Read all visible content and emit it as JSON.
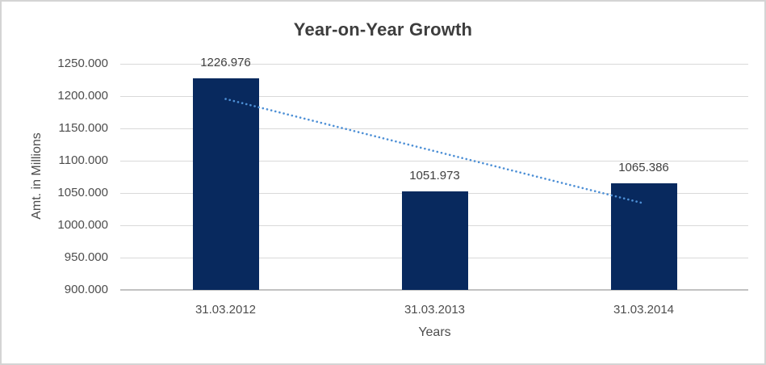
{
  "window": {
    "background": "#FFFFFF",
    "border_color": "#D4D4D4"
  },
  "chart_data": {
    "type": "bar",
    "title": "Year-on-Year Growth",
    "categories": [
      "31.03.2012",
      "31.03.2013",
      "31.03.2014"
    ],
    "values": [
      1226.976,
      1051.973,
      1065.386
    ],
    "data_labels": [
      "1226.976",
      "1051.973",
      "1065.386"
    ],
    "xlabel": "Years",
    "ylabel": "Amt. in Millions",
    "ylim": [
      900,
      1250
    ],
    "ytick_values": [
      900,
      950,
      1000,
      1050,
      1100,
      1150,
      1200,
      1250
    ],
    "ytick_labels": [
      "900.000",
      "950.000",
      "1000.000",
      "1050.000",
      "1100.000",
      "1150.000",
      "1200.000",
      "1250.000"
    ],
    "grid": true,
    "legend": "none",
    "trendline": {
      "type": "linear",
      "style": "dotted",
      "color": "#4E90D6"
    },
    "colors": {
      "bar": "#08295E",
      "gridline": "#D9D9D9",
      "axis_line": "#C2C2C2",
      "title_text": "#3D3D3D",
      "tick_text": "#4D4D4D",
      "axis_title_text": "#4D4D4D",
      "data_label_text": "#3F3F3F"
    }
  }
}
